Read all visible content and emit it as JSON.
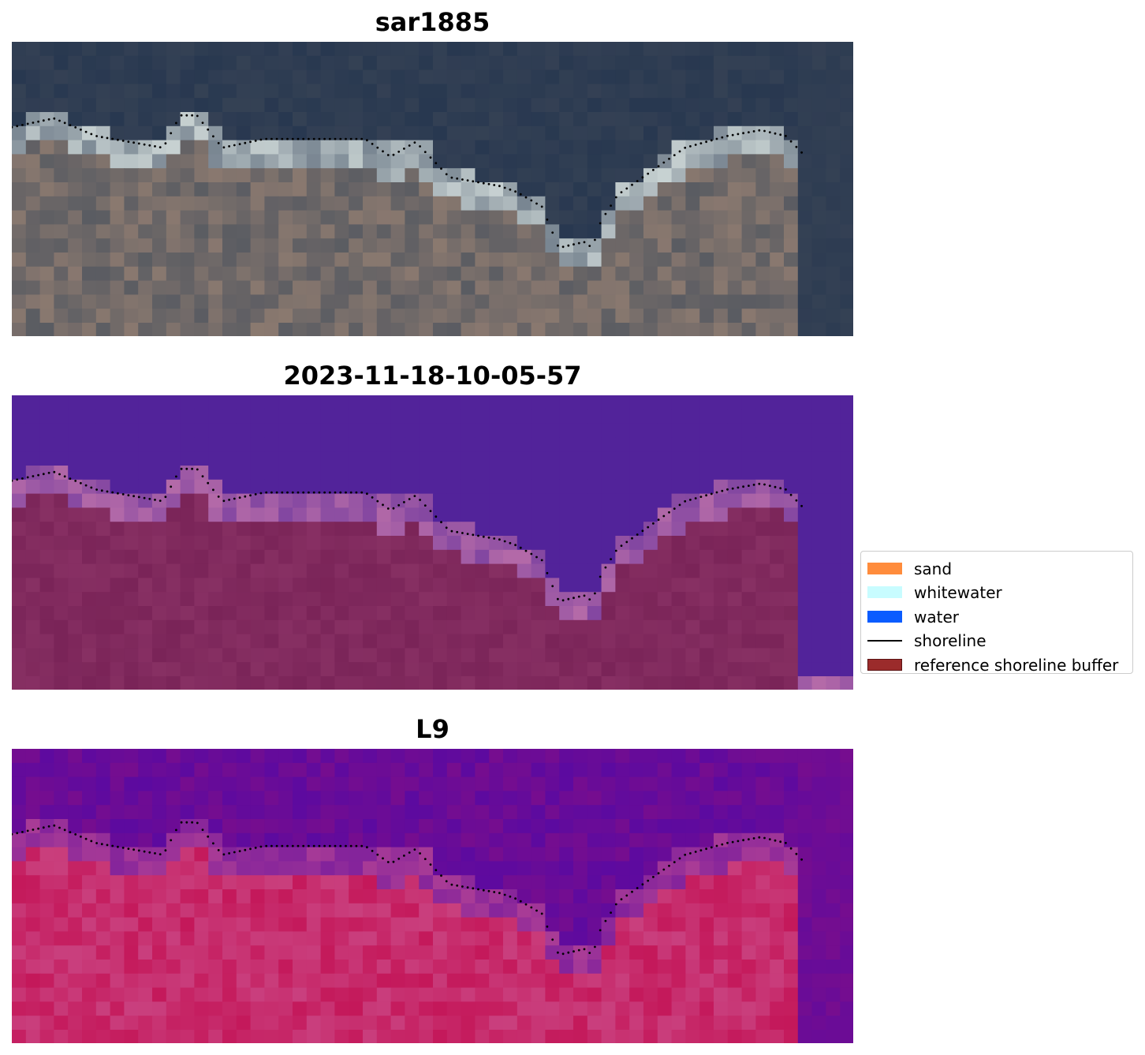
{
  "panels": [
    {
      "title": "sar1885",
      "image": "rgb-satellite-composite"
    },
    {
      "title": "2023-11-18-10-05-57",
      "image": "classified-overlay"
    },
    {
      "title": "L9",
      "image": "ndwi-false-color"
    }
  ],
  "legend": {
    "items": [
      {
        "label": "sand",
        "color": "#ff8c3c",
        "kind": "patch"
      },
      {
        "label": "whitewater",
        "color": "#c8fcff",
        "kind": "patch"
      },
      {
        "label": "water",
        "color": "#0a5cff",
        "kind": "patch"
      },
      {
        "label": "shoreline",
        "color": "#000000",
        "kind": "line"
      },
      {
        "label": "reference shoreline buffer",
        "color": "#9b2b2b",
        "kind": "patch"
      }
    ]
  },
  "colors": {
    "ocean_dark": "#2b3a52",
    "water_class": "#52239a",
    "land_class": "#7a2458",
    "whitewater_class": "#b46aa8",
    "l9_water": "#5c0aa0",
    "l9_land": "#c4185a"
  }
}
